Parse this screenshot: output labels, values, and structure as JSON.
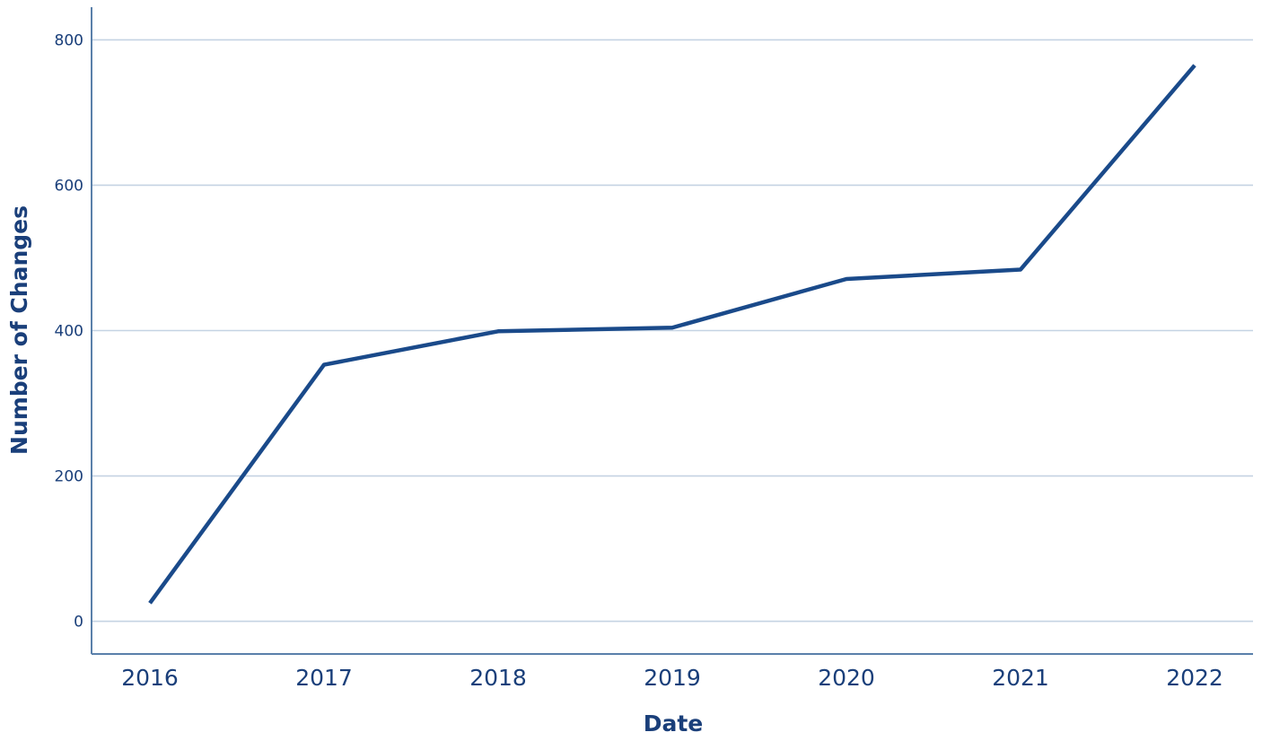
{
  "chart_data": {
    "type": "line",
    "xlabel": "Date",
    "ylabel": "Number of Changes",
    "x": [
      "2016",
      "2017",
      "2018",
      "2019",
      "2020",
      "2021",
      "2022"
    ],
    "series": [
      {
        "values": [
          25,
          353,
          399,
          404,
          471,
          484,
          765
        ]
      }
    ],
    "yticks": [
      "0",
      "200",
      "400",
      "600",
      "800"
    ],
    "ylim": [
      -45,
      845
    ],
    "grid": "horizontal",
    "legend": "none",
    "colors": {
      "line": "#1a4a8a",
      "grid": "#c5d3e3",
      "axis": "#5a80aa",
      "text": "#1a3f7a"
    }
  }
}
